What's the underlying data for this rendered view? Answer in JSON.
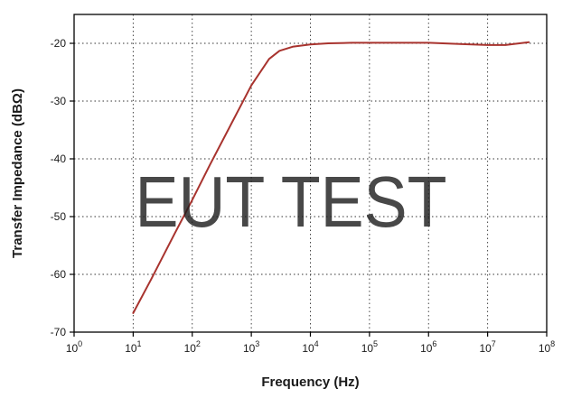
{
  "chart_data": {
    "type": "line",
    "title": "",
    "xlabel": "Frequency (Hz)",
    "ylabel": "Transfer Impedance (dBΩ)",
    "x_scale": "log",
    "xlim": [
      1,
      100000000
    ],
    "ylim": [
      -70,
      -15
    ],
    "x_ticks": [
      {
        "value": 1,
        "base": "10",
        "exp": "0"
      },
      {
        "value": 10,
        "base": "10",
        "exp": "1"
      },
      {
        "value": 100,
        "base": "10",
        "exp": "2"
      },
      {
        "value": 1000,
        "base": "10",
        "exp": "3"
      },
      {
        "value": 10000,
        "base": "10",
        "exp": "4"
      },
      {
        "value": 100000,
        "base": "10",
        "exp": "5"
      },
      {
        "value": 1000000,
        "base": "10",
        "exp": "6"
      },
      {
        "value": 10000000,
        "base": "10",
        "exp": "7"
      },
      {
        "value": 100000000,
        "base": "10",
        "exp": "8"
      }
    ],
    "y_ticks": [
      -20,
      -30,
      -40,
      -50,
      -60,
      -70
    ],
    "grid": true,
    "grid_style": "dotted",
    "series": [
      {
        "color": "#a8332e",
        "x": [
          10,
          20,
          50,
          100,
          200,
          500,
          1000,
          2000,
          3000,
          5000,
          10000,
          20000,
          50000,
          100000,
          300000,
          1000000,
          3000000,
          10000000,
          20000000,
          50000000
        ],
        "y": [
          -66.7,
          -60.9,
          -53.0,
          -47.1,
          -41.0,
          -33.2,
          -27.3,
          -22.7,
          -21.3,
          -20.6,
          -20.2,
          -20.0,
          -19.9,
          -19.9,
          -19.9,
          -19.9,
          -20.1,
          -20.3,
          -20.3,
          -19.8
        ]
      }
    ]
  },
  "watermark": {
    "text": "EUT TEST",
    "color": "#5b9bd5"
  }
}
